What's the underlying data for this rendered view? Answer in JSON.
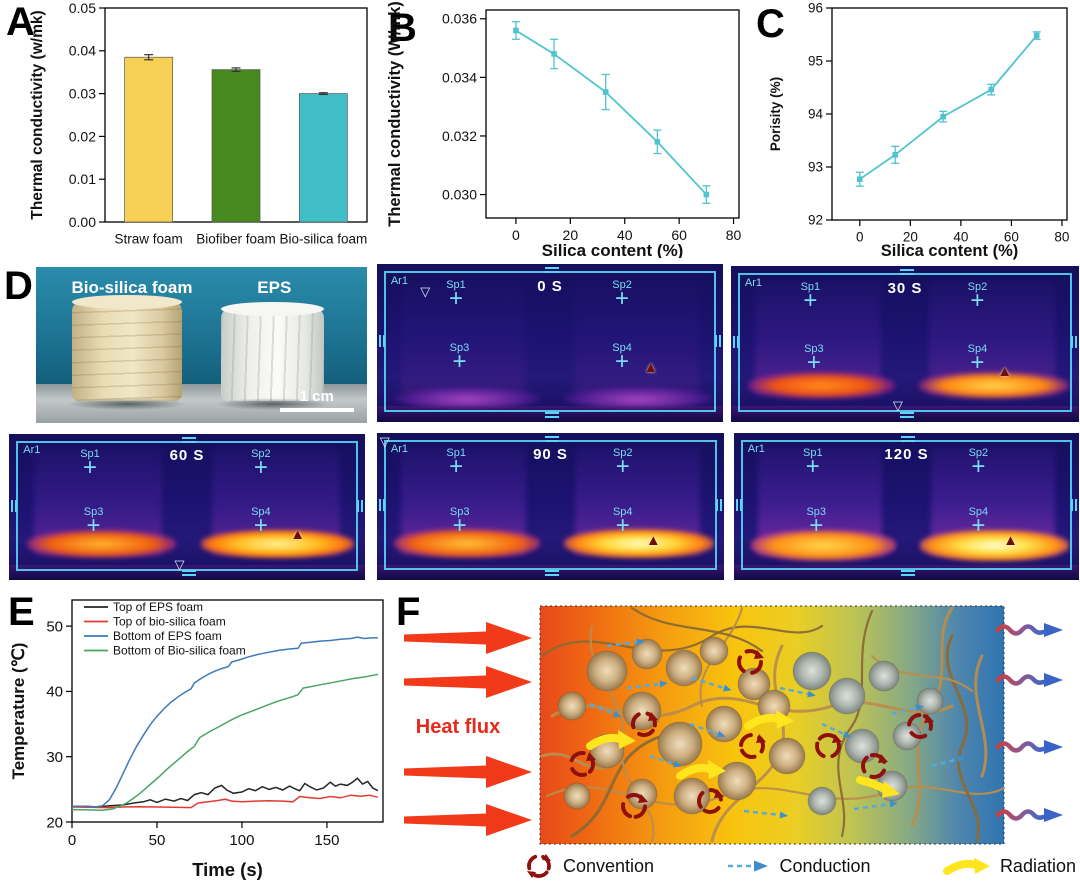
{
  "panel_labels": {
    "A": "A",
    "B": "B",
    "C": "C",
    "D": "D",
    "E": "E",
    "F": "F"
  },
  "photo": {
    "left_sample": "Bio-silica foam",
    "right_sample": "EPS",
    "scale_bar": "1 cm"
  },
  "thermal": {
    "area_label": "Ar1",
    "spot_labels": [
      "Sp1",
      "Sp2",
      "Sp3",
      "Sp4"
    ],
    "frames": [
      {
        "time_label": "0 S"
      },
      {
        "time_label": "30 S"
      },
      {
        "time_label": "60 S"
      },
      {
        "time_label": "90 S"
      },
      {
        "time_label": "120 S"
      }
    ]
  },
  "schematic": {
    "heat_flux_label": "Heat flux",
    "legend": [
      {
        "label": "Convention"
      },
      {
        "label": "Conduction"
      },
      {
        "label": "Radiation"
      }
    ],
    "colors": {
      "heat_arrow": "#f23a1a",
      "convection": "#8f100c",
      "conduction": "#58a8e0",
      "radiation": "#ffe51e"
    }
  },
  "chart_data": [
    {
      "id": "chartA",
      "type": "bar",
      "categories": [
        "Straw foam",
        "Biofiber foam",
        "Bio-silica foam"
      ],
      "values": [
        0.0385,
        0.0356,
        0.03
      ],
      "errors": [
        0.0006,
        0.0004,
        0.0002
      ],
      "bar_colors": [
        "#f6d155",
        "#45891f",
        "#40bfc8"
      ],
      "ylabel": "Thermal conductivity (w/mk)",
      "xlabel": "",
      "ylim": [
        0,
        0.05
      ],
      "yticks": [
        0,
        0.01,
        0.02,
        0.03,
        0.04,
        0.05
      ],
      "ydec": 2
    },
    {
      "id": "chartB",
      "type": "line",
      "x": [
        0,
        14,
        33,
        52,
        70
      ],
      "y": [
        0.0356,
        0.0348,
        0.0335,
        0.0318,
        0.03
      ],
      "errors": [
        0.0003,
        0.0005,
        0.0006,
        0.0004,
        0.0003
      ],
      "line_color": "#4fc4ce",
      "xlabel": "Silica content (%)",
      "ylabel": "Thermal conductivity (W/mk)",
      "xlim": [
        -11,
        82
      ],
      "ylim": [
        0.0292,
        0.0363
      ],
      "xticks": [
        0,
        20,
        40,
        60,
        80
      ],
      "yticks": [
        0.03,
        0.032,
        0.034,
        0.036
      ],
      "ydec": 3,
      "xdec": 0
    },
    {
      "id": "chartC",
      "type": "line",
      "x": [
        0,
        14,
        33,
        52,
        70
      ],
      "y": [
        92.77,
        93.23,
        93.95,
        94.46,
        95.48
      ],
      "errors": [
        0.13,
        0.16,
        0.1,
        0.1,
        0.07
      ],
      "line_color": "#4fc4ce",
      "xlabel": "Silica content (%)",
      "ylabel": "Porisity (%)",
      "xlim": [
        -11,
        82
      ],
      "ylim": [
        92,
        96
      ],
      "xticks": [
        0,
        20,
        40,
        60,
        80
      ],
      "yticks": [
        92,
        93,
        94,
        95,
        96
      ],
      "ydec": 0,
      "xdec": 0
    },
    {
      "id": "chartE",
      "type": "line-multi",
      "xlabel": "Time (s)",
      "ylabel": "Temperature (℃)",
      "xlim": [
        0,
        183
      ],
      "ylim": [
        20,
        54
      ],
      "xticks": [
        0,
        50,
        100,
        150
      ],
      "yticks": [
        20,
        30,
        40,
        50
      ],
      "ydec": 0,
      "xdec": 0,
      "legend_position": "top-left",
      "series": [
        {
          "name": "Top of EPS foam",
          "color": "#262626",
          "points": [
            [
              0,
              22.4
            ],
            [
              8,
              22.4
            ],
            [
              15,
              22.3
            ],
            [
              22,
              22.5
            ],
            [
              30,
              22.6
            ],
            [
              36,
              22.9
            ],
            [
              42,
              23.1
            ],
            [
              46,
              23.4
            ],
            [
              50,
              23.0
            ],
            [
              55,
              23.5
            ],
            [
              60,
              23.2
            ],
            [
              64,
              23.6
            ],
            [
              68,
              23.3
            ],
            [
              72,
              24.2
            ],
            [
              76,
              24.5
            ],
            [
              80,
              24.2
            ],
            [
              84,
              25.2
            ],
            [
              88,
              25.6
            ],
            [
              91,
              24.9
            ],
            [
              95,
              24.4
            ],
            [
              100,
              24.6
            ],
            [
              104,
              25.1
            ],
            [
              108,
              24.8
            ],
            [
              112,
              25.4
            ],
            [
              116,
              25.0
            ],
            [
              120,
              25.3
            ],
            [
              124,
              24.9
            ],
            [
              128,
              25.5
            ],
            [
              131,
              25.1
            ],
            [
              134,
              24.8
            ],
            [
              137,
              25.9
            ],
            [
              140,
              25.4
            ],
            [
              144,
              24.9
            ],
            [
              148,
              25.2
            ],
            [
              152,
              26.1
            ],
            [
              155,
              25.5
            ],
            [
              158,
              25.8
            ],
            [
              162,
              25.6
            ],
            [
              165,
              26.1
            ],
            [
              168,
              26.7
            ],
            [
              171,
              25.8
            ],
            [
              174,
              26.2
            ],
            [
              177,
              25.2
            ],
            [
              180,
              24.8
            ]
          ]
        },
        {
          "name": "Top of bio-silica foam",
          "color": "#e23b2e",
          "points": [
            [
              0,
              22.3
            ],
            [
              10,
              22.25
            ],
            [
              20,
              22.2
            ],
            [
              30,
              22.3
            ],
            [
              40,
              22.35
            ],
            [
              50,
              22.3
            ],
            [
              60,
              22.25
            ],
            [
              70,
              22.2
            ],
            [
              74,
              22.9
            ],
            [
              80,
              23.1
            ],
            [
              86,
              23.3
            ],
            [
              90,
              23.5
            ],
            [
              94,
              23.2
            ],
            [
              100,
              23.1
            ],
            [
              108,
              23.2
            ],
            [
              116,
              23.25
            ],
            [
              124,
              23.2
            ],
            [
              130,
              23.1
            ],
            [
              134,
              23.9
            ],
            [
              140,
              23.7
            ],
            [
              146,
              23.6
            ],
            [
              152,
              23.9
            ],
            [
              158,
              23.7
            ],
            [
              164,
              24.1
            ],
            [
              170,
              23.95
            ],
            [
              175,
              24.1
            ],
            [
              180,
              23.8
            ]
          ]
        },
        {
          "name": "Bottom of EPS foam",
          "color": "#3d7ab8",
          "points": [
            [
              0,
              22.4
            ],
            [
              8,
              22.4
            ],
            [
              14,
              22.3
            ],
            [
              18,
              22.5
            ],
            [
              22,
              23.4
            ],
            [
              26,
              25.2
            ],
            [
              30,
              27.4
            ],
            [
              34,
              29.6
            ],
            [
              38,
              31.6
            ],
            [
              42,
              33.3
            ],
            [
              46,
              34.9
            ],
            [
              50,
              36.2
            ],
            [
              54,
              37.3
            ],
            [
              58,
              38.3
            ],
            [
              62,
              39.1
            ],
            [
              66,
              39.8
            ],
            [
              70,
              40.4
            ],
            [
              72,
              41.3
            ],
            [
              76,
              42.0
            ],
            [
              80,
              42.6
            ],
            [
              84,
              43.1
            ],
            [
              88,
              43.5
            ],
            [
              92,
              43.8
            ],
            [
              94,
              44.5
            ],
            [
              98,
              44.8
            ],
            [
              104,
              45.3
            ],
            [
              110,
              45.7
            ],
            [
              116,
              46.0
            ],
            [
              122,
              46.3
            ],
            [
              128,
              46.5
            ],
            [
              133,
              46.6
            ],
            [
              135,
              47.4
            ],
            [
              140,
              47.5
            ],
            [
              146,
              47.7
            ],
            [
              152,
              47.8
            ],
            [
              158,
              48.0
            ],
            [
              164,
              48.1
            ],
            [
              168,
              48.3
            ],
            [
              172,
              48.1
            ],
            [
              176,
              48.2
            ],
            [
              180,
              48.2
            ]
          ]
        },
        {
          "name": "Bottom of  Bio-silica foam",
          "color": "#4aa465",
          "points": [
            [
              0,
              21.9
            ],
            [
              10,
              21.85
            ],
            [
              18,
              21.8
            ],
            [
              24,
              22.0
            ],
            [
              28,
              22.4
            ],
            [
              32,
              22.9
            ],
            [
              36,
              23.6
            ],
            [
              40,
              24.4
            ],
            [
              44,
              25.3
            ],
            [
              48,
              26.2
            ],
            [
              52,
              27.1
            ],
            [
              56,
              28.1
            ],
            [
              60,
              29.0
            ],
            [
              64,
              29.9
            ],
            [
              68,
              30.8
            ],
            [
              72,
              31.6
            ],
            [
              75,
              32.9
            ],
            [
              80,
              33.7
            ],
            [
              85,
              34.4
            ],
            [
              90,
              35.1
            ],
            [
              95,
              35.8
            ],
            [
              100,
              36.4
            ],
            [
              105,
              36.9
            ],
            [
              110,
              37.4
            ],
            [
              115,
              37.9
            ],
            [
              120,
              38.4
            ],
            [
              125,
              38.8
            ],
            [
              130,
              39.2
            ],
            [
              133,
              39.5
            ],
            [
              136,
              40.5
            ],
            [
              142,
              40.8
            ],
            [
              148,
              41.1
            ],
            [
              154,
              41.4
            ],
            [
              160,
              41.7
            ],
            [
              166,
              42.0
            ],
            [
              172,
              42.2
            ],
            [
              176,
              42.4
            ],
            [
              180,
              42.6
            ]
          ]
        }
      ]
    }
  ]
}
